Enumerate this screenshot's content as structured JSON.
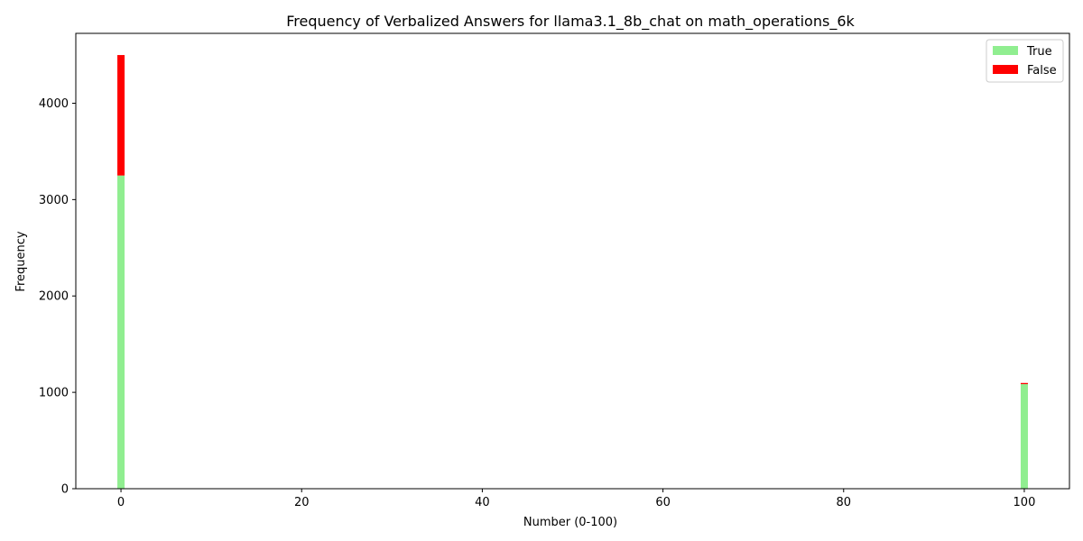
{
  "chart_data": {
    "type": "bar",
    "stacked": true,
    "title": "Frequency of Verbalized Answers for llama3.1_8b_chat on math_operations_6k",
    "xlabel": "Number (0-100)",
    "ylabel": "Frequency",
    "xlim": [
      -5,
      105
    ],
    "ylim": [
      0,
      4725
    ],
    "xticks": [
      0,
      20,
      40,
      60,
      80,
      100
    ],
    "yticks": [
      0,
      1000,
      2000,
      3000,
      4000
    ],
    "grid": false,
    "legend_position": "top-right",
    "x": [
      0,
      100
    ],
    "series": [
      {
        "name": "True",
        "color": "#90ee90",
        "values": [
          3250,
          1085
        ]
      },
      {
        "name": "False",
        "color": "#ff0000",
        "values": [
          1250,
          12
        ]
      }
    ]
  }
}
